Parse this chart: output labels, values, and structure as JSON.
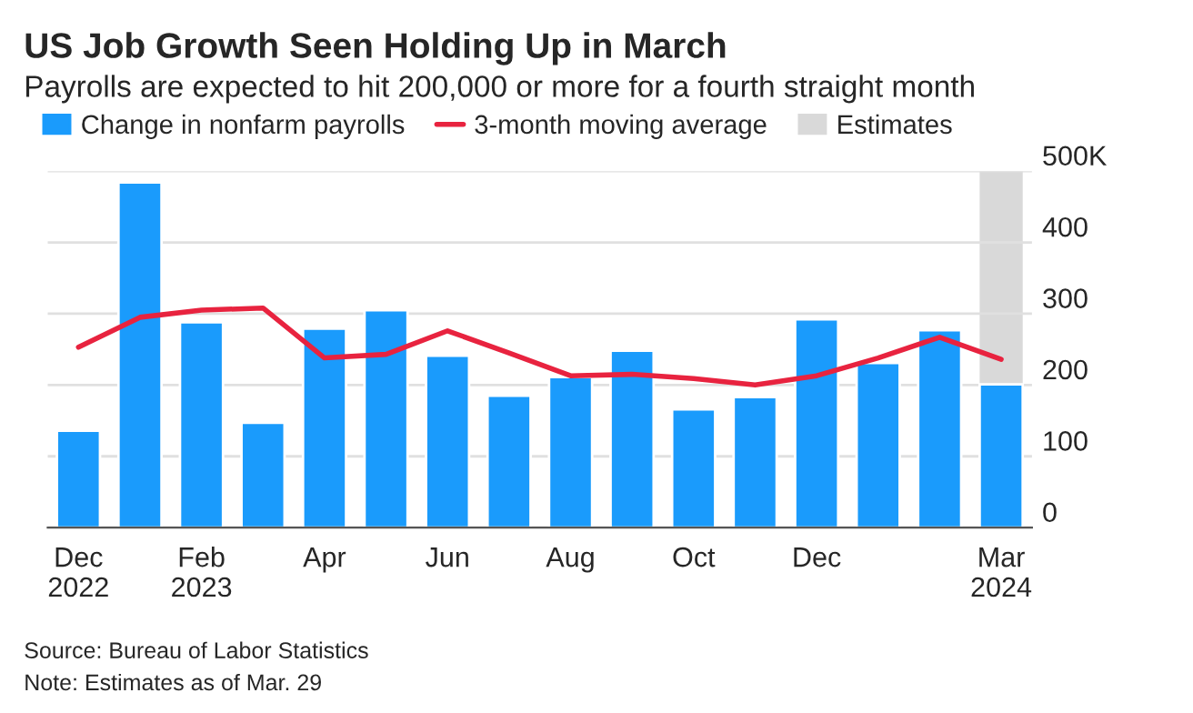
{
  "chart_data": {
    "type": "bar",
    "title": "US Job Growth Seen Holding Up in March",
    "subtitle": "Payrolls are expected to hit 200,000 or more for a fourth straight month",
    "categories": [
      "Dec\n2022",
      null,
      "Feb\n2023",
      null,
      "Apr",
      null,
      "Jun",
      null,
      "Aug",
      null,
      "Oct",
      null,
      "Dec",
      null,
      null,
      "Mar\n2024"
    ],
    "series": [
      {
        "name": "Change in nonfarm payrolls",
        "color": "#1a9bfc",
        "values": [
          136,
          484,
          288,
          147,
          279,
          305,
          241,
          185,
          211,
          248,
          166,
          183,
          292,
          231,
          277,
          201
        ]
      },
      {
        "name": "3-month moving average",
        "type": "line",
        "color": "#e8233f",
        "values": [
          253,
          295,
          305,
          308,
          238,
          243,
          276,
          245,
          213,
          215,
          209,
          200,
          213,
          238,
          267,
          236
        ]
      }
    ],
    "bands": [
      {
        "axis": "x",
        "from": "Mar\n2024",
        "to": "Mar\n2024",
        "label": "Estimates",
        "color": "#d9d9d9"
      }
    ],
    "ylim": [
      0,
      500
    ],
    "yticks": [
      0,
      100,
      200,
      300,
      400,
      {
        "value": 500,
        "label": "500K"
      }
    ],
    "grid": "y",
    "legend": "top left",
    "annotations": [
      "Source: Bureau of Labor Statistics",
      "Note: Estimates as of Mar. 29"
    ]
  }
}
